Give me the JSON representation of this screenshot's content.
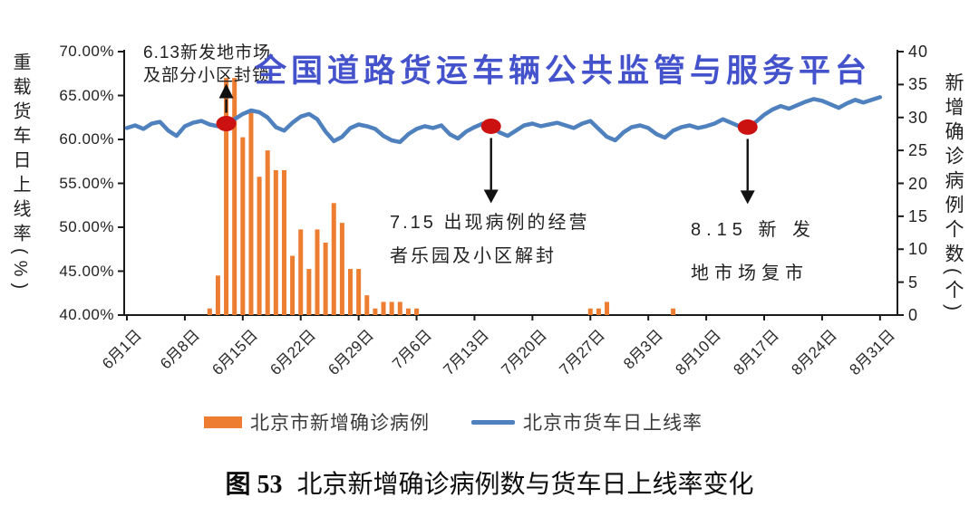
{
  "watermark": {
    "text": "全国道路货运车辆公共监管与服务平台"
  },
  "caption": {
    "prefix": "图 53",
    "text": "北京新增确诊病例数与货车日上线率变化"
  },
  "colors": {
    "bar": "#ED7D31",
    "line": "#4E81BD",
    "marker": "#CC1111",
    "watermark": "#4453CB",
    "axis": "#1a1a1a",
    "arrow": "#111111"
  },
  "chart_data": {
    "type": "combo",
    "grid": false,
    "legend_position": "bottom",
    "x_dates": [
      "6月1日",
      "6月2日",
      "6月3日",
      "6月4日",
      "6月5日",
      "6月6日",
      "6月7日",
      "6月8日",
      "6月9日",
      "6月10日",
      "6月11日",
      "6月12日",
      "6月13日",
      "6月14日",
      "6月15日",
      "6月16日",
      "6月17日",
      "6月18日",
      "6月19日",
      "6月20日",
      "6月21日",
      "6月22日",
      "6月23日",
      "6月24日",
      "6月25日",
      "6月26日",
      "6月27日",
      "6月28日",
      "6月29日",
      "6月30日",
      "7月1日",
      "7月2日",
      "7月3日",
      "7月4日",
      "7月5日",
      "7月6日",
      "7月7日",
      "7月8日",
      "7月9日",
      "7月10日",
      "7月11日",
      "7月12日",
      "7月13日",
      "7月14日",
      "7月15日",
      "7月16日",
      "7月17日",
      "7月18日",
      "7月19日",
      "7月20日",
      "7月21日",
      "7月22日",
      "7月23日",
      "7月24日",
      "7月25日",
      "7月26日",
      "7月27日",
      "7月28日",
      "7月29日",
      "7月30日",
      "7月31日",
      "8月1日",
      "8月2日",
      "8月3日",
      "8月4日",
      "8月5日",
      "8月6日",
      "8月7日",
      "8月8日",
      "8月9日",
      "8月10日",
      "8月11日",
      "8月12日",
      "8月13日",
      "8月14日",
      "8月15日",
      "8月16日",
      "8月17日",
      "8月18日",
      "8月19日",
      "8月20日",
      "8月21日",
      "8月22日",
      "8月23日",
      "8月24日",
      "8月25日",
      "8月26日",
      "8月27日",
      "8月28日",
      "8月29日",
      "8月30日",
      "8月31日"
    ],
    "x_tick_labels": [
      "6月1日",
      "6月8日",
      "6月15日",
      "6月22日",
      "6月29日",
      "7月6日",
      "7月13日",
      "7月20日",
      "7月27日",
      "8月3日",
      "8月10日",
      "8月17日",
      "8月24日",
      "8月31日"
    ],
    "left_axis": {
      "label": "重载货车日上线率(%)",
      "min": 40,
      "max": 70,
      "ticks": [
        "70.00%",
        "65.00%",
        "60.00%",
        "55.00%",
        "50.00%",
        "45.00%",
        "40.00%"
      ]
    },
    "right_axis": {
      "label": "新增确诊病例个数(个)",
      "min": 0,
      "max": 40,
      "ticks": [
        "40",
        "35",
        "30",
        "25",
        "20",
        "15",
        "10",
        "5",
        "0"
      ]
    },
    "series": [
      {
        "name": "北京市新增确诊病例",
        "type": "bar",
        "axis": "right",
        "values": [
          0,
          0,
          0,
          0,
          0,
          0,
          0,
          0,
          0,
          0,
          1,
          6,
          36,
          36,
          27,
          31,
          21,
          25,
          22,
          22,
          9,
          13,
          7,
          13,
          11,
          17,
          14,
          7,
          7,
          3,
          1,
          2,
          2,
          2,
          1,
          1,
          0,
          0,
          0,
          0,
          0,
          0,
          0,
          0,
          0,
          0,
          0,
          0,
          0,
          0,
          0,
          0,
          0,
          0,
          0,
          0,
          1,
          1,
          2,
          0,
          0,
          0,
          0,
          0,
          0,
          0,
          1,
          0,
          0,
          0,
          0,
          0,
          0,
          0,
          0,
          0,
          0,
          0,
          0,
          0,
          0,
          0,
          0,
          0,
          0,
          0,
          0,
          0,
          0,
          0,
          0,
          0
        ]
      },
      {
        "name": "北京市货车日上线率",
        "type": "line",
        "axis": "left",
        "values": [
          61.3,
          61.6,
          61.2,
          61.8,
          62.0,
          61.0,
          60.4,
          61.5,
          61.9,
          62.1,
          61.7,
          61.5,
          61.8,
          62.3,
          62.9,
          63.3,
          63.1,
          62.5,
          61.4,
          61.0,
          61.9,
          62.6,
          62.9,
          62.3,
          60.9,
          59.8,
          60.3,
          61.3,
          61.7,
          61.5,
          61.2,
          60.4,
          59.9,
          59.7,
          60.6,
          61.2,
          61.5,
          61.3,
          61.6,
          60.6,
          60.1,
          60.9,
          61.4,
          61.8,
          61.5,
          60.8,
          60.4,
          61.0,
          61.6,
          61.8,
          61.5,
          61.7,
          61.9,
          61.6,
          61.3,
          61.8,
          62.1,
          61.2,
          60.3,
          59.9,
          60.8,
          61.4,
          61.6,
          61.3,
          60.6,
          60.2,
          61.0,
          61.4,
          61.6,
          61.3,
          61.5,
          61.8,
          62.3,
          61.9,
          61.5,
          61.4,
          62.0,
          62.8,
          63.4,
          63.8,
          63.5,
          63.9,
          64.3,
          64.6,
          64.4,
          64.0,
          63.6,
          64.1,
          64.5,
          64.2,
          64.5,
          64.8
        ]
      }
    ],
    "annotations": [
      {
        "lines": [
          "6.13新发地市场",
          "及部分小区封锁"
        ],
        "day": "6月13日",
        "day_index": 12,
        "arrow": "up"
      },
      {
        "lines": [
          "7.15 出现病例的经营",
          "者乐园及小区解封"
        ],
        "day": "7月15日",
        "day_index": 44,
        "arrow": "down"
      },
      {
        "lines": [
          "8.15  新 发",
          "地市场复市"
        ],
        "day": "8月15日",
        "day_index": 75,
        "arrow": "down"
      }
    ]
  }
}
